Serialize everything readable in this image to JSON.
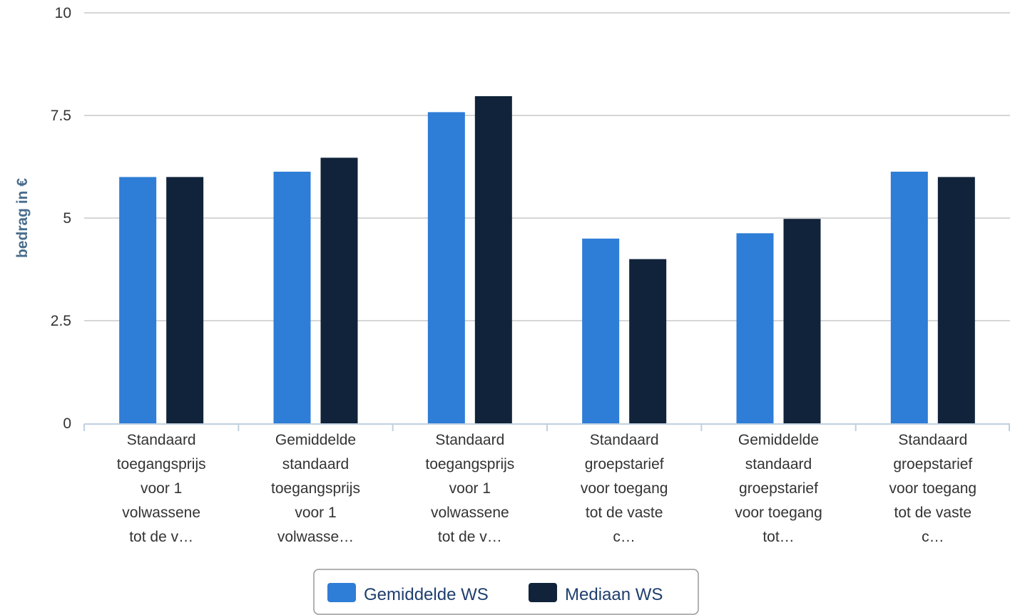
{
  "chart_data": {
    "type": "bar",
    "ylabel": "bedrag in €",
    "ylim": [
      0,
      10
    ],
    "yticks": [
      0,
      2.5,
      5,
      7.5,
      10
    ],
    "ytick_labels": [
      "0",
      "2.5",
      "5",
      "7.5",
      "10"
    ],
    "categories": [
      [
        "Standaard",
        "toegangsprijs",
        "voor 1",
        "volwassene",
        "tot de v…"
      ],
      [
        "Gemiddelde",
        "standaard",
        "toegangsprijs",
        "voor 1",
        "volwasse…"
      ],
      [
        "Standaard",
        "toegangsprijs",
        "voor 1",
        "volwassene",
        "tot de v…"
      ],
      [
        "Standaard",
        "groepstarief",
        "voor toegang",
        "tot de vaste",
        "c…"
      ],
      [
        "Gemiddelde",
        "standaard",
        "groepstarief",
        "voor toegang",
        "tot…"
      ],
      [
        "Standaard",
        "groepstarief",
        "voor toegang",
        "tot de vaste",
        "c…"
      ]
    ],
    "series": [
      {
        "name": "Gemiddelde WS",
        "color": "#2e7dd7",
        "values": [
          6.0,
          6.13,
          7.58,
          4.5,
          4.63,
          6.13
        ]
      },
      {
        "name": "Mediaan WS",
        "color": "#10233a",
        "values": [
          6.0,
          6.47,
          7.97,
          4.0,
          4.98,
          6.0
        ]
      }
    ],
    "grid": true,
    "legend_position": "bottom-center"
  }
}
